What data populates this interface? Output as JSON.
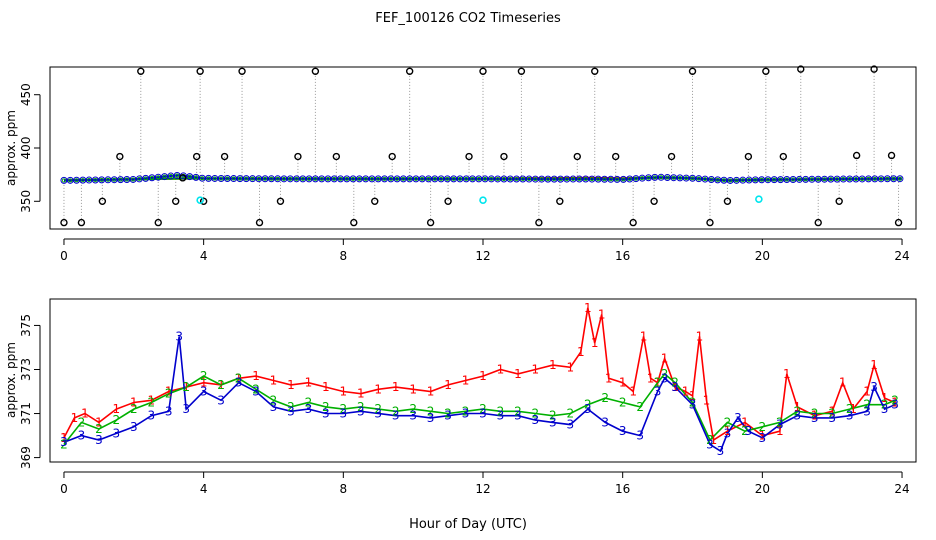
{
  "title": "FEF_100126  CO2 Timeseries",
  "xlabel": "Hour of Day (UTC)",
  "colors": {
    "series1": "#ff0000",
    "series2": "#00b000",
    "series3": "#0000cc",
    "reference": "#000000",
    "reference_alt": "#00e5ee",
    "connector": "#999999"
  },
  "chart_data": [
    {
      "type": "line",
      "name": "top-panel",
      "ylabel": "approx. ppm",
      "xlim": [
        -0.4,
        24.4
      ],
      "ylim": [
        324,
        476
      ],
      "x_ticks": [
        0,
        4,
        8,
        12,
        16,
        20,
        24
      ],
      "y_ticks": [
        350,
        400,
        450
      ],
      "series": [
        {
          "name": "1",
          "color": "#ff0000",
          "x": [
            0,
            2,
            4,
            6,
            8,
            10,
            12,
            13,
            14,
            15,
            16,
            17,
            18,
            19,
            20,
            22,
            24
          ],
          "y": [
            369.8,
            370.8,
            371.4,
            371.2,
            371.1,
            371.0,
            371.1,
            371.6,
            371.8,
            372.0,
            371.6,
            372.2,
            371.6,
            369.7,
            370.2,
            370.8,
            371.3
          ]
        },
        {
          "name": "2",
          "color": "#00b000",
          "x": [
            0,
            2,
            4,
            6,
            8,
            10,
            12,
            14,
            15,
            16,
            17,
            18,
            19,
            20,
            22,
            24
          ],
          "y": [
            369.6,
            370.7,
            371.5,
            371.1,
            371.0,
            371.0,
            371.0,
            370.9,
            371.0,
            370.6,
            372.4,
            371.5,
            369.6,
            370.2,
            370.8,
            371.2
          ]
        },
        {
          "name": "3",
          "color": "#0000cc",
          "x": [
            0,
            2,
            3.3,
            4,
            6,
            8,
            10,
            12,
            14,
            15,
            16,
            17,
            18,
            19,
            20,
            22,
            24
          ],
          "y": [
            369.6,
            370.5,
            374.4,
            371.5,
            371.1,
            371.0,
            371.0,
            371.0,
            370.8,
            370.9,
            370.5,
            372.6,
            371.6,
            369.5,
            370.2,
            370.8,
            371.2
          ]
        }
      ],
      "reference_points": {
        "note": "open-circle reference measurements cycling between ~330, ~350, ~392 and ~472 ppm",
        "x": [
          0.0,
          0.5,
          1.1,
          1.6,
          2.2,
          2.7,
          3.2,
          3.4,
          3.8,
          3.9,
          4.0,
          4.6,
          5.1,
          5.6,
          6.2,
          6.7,
          7.2,
          7.8,
          8.3,
          8.9,
          9.4,
          9.9,
          10.5,
          11.0,
          11.6,
          12.0,
          12.6,
          13.1,
          13.6,
          14.2,
          14.7,
          15.2,
          15.8,
          16.3,
          16.9,
          17.4,
          18.0,
          18.5,
          19.0,
          19.6,
          20.1,
          20.6,
          21.1,
          21.6,
          22.2,
          22.7,
          23.2,
          23.7,
          23.9
        ],
        "y": [
          330,
          330,
          350,
          392,
          472,
          330,
          350,
          372,
          392,
          472,
          350,
          392,
          472,
          330,
          350,
          392,
          472,
          392,
          330,
          350,
          392,
          472,
          330,
          350,
          392,
          472,
          392,
          472,
          330,
          350,
          392,
          472,
          392,
          330,
          350,
          392,
          472,
          330,
          350,
          392,
          472,
          392,
          474,
          330,
          350,
          393,
          474,
          393,
          330
        ]
      },
      "reference_alt_points": {
        "x": [
          3.9,
          12.0,
          19.9
        ],
        "y": [
          351,
          351,
          352
        ]
      }
    },
    {
      "type": "line",
      "name": "bottom-panel",
      "ylabel": "approx. ppm",
      "xlim": [
        -0.4,
        24.4
      ],
      "ylim": [
        368.8,
        376.2
      ],
      "x_ticks": [
        0,
        4,
        8,
        12,
        16,
        20,
        24
      ],
      "y_ticks": [
        369,
        371,
        373,
        375
      ],
      "series": [
        {
          "name": "1",
          "color": "#ff0000",
          "x": [
            0,
            0.3,
            0.6,
            1.0,
            1.5,
            2.0,
            2.5,
            3.0,
            3.5,
            4.0,
            4.5,
            5.0,
            5.5,
            6.0,
            6.5,
            7.0,
            7.5,
            8.0,
            8.5,
            9.0,
            9.5,
            10.0,
            10.5,
            11.0,
            11.5,
            12.0,
            12.5,
            13.0,
            13.5,
            14.0,
            14.5,
            14.8,
            15.0,
            15.2,
            15.4,
            15.6,
            16.0,
            16.3,
            16.6,
            16.8,
            17.0,
            17.2,
            17.5,
            17.8,
            18.0,
            18.2,
            18.4,
            18.6,
            19.0,
            19.5,
            20.0,
            20.5,
            20.7,
            21.0,
            21.5,
            22.0,
            22.3,
            22.6,
            23.0,
            23.2,
            23.5,
            23.8
          ],
          "y": [
            369.9,
            370.8,
            371.0,
            370.6,
            371.2,
            371.5,
            371.6,
            372.0,
            372.2,
            372.4,
            372.3,
            372.6,
            372.7,
            372.5,
            372.3,
            372.4,
            372.2,
            372.0,
            371.9,
            372.1,
            372.2,
            372.1,
            372.0,
            372.3,
            372.5,
            372.7,
            373.0,
            372.8,
            373.0,
            373.2,
            373.1,
            373.8,
            375.8,
            374.2,
            375.5,
            372.6,
            372.4,
            372.0,
            374.5,
            372.6,
            372.4,
            373.5,
            372.2,
            372.0,
            371.8,
            374.5,
            371.6,
            369.8,
            370.2,
            370.6,
            370.0,
            370.2,
            372.8,
            371.3,
            370.9,
            371.1,
            372.4,
            371.2,
            372.0,
            373.2,
            371.7,
            371.5
          ]
        },
        {
          "name": "2",
          "color": "#00b000",
          "x": [
            0,
            0.5,
            1.0,
            1.5,
            2.0,
            2.5,
            3.0,
            3.5,
            4.0,
            4.5,
            5.0,
            5.5,
            6.0,
            6.5,
            7.0,
            7.5,
            8.0,
            8.5,
            9.0,
            9.5,
            10.0,
            10.5,
            11.0,
            11.5,
            12.0,
            12.5,
            13.0,
            13.5,
            14.0,
            14.5,
            15.0,
            15.5,
            16.0,
            16.5,
            17.0,
            17.2,
            17.5,
            18.0,
            18.5,
            19.0,
            19.5,
            20.0,
            20.5,
            21.0,
            21.5,
            22.0,
            22.5,
            23.0,
            23.5,
            23.8
          ],
          "y": [
            369.6,
            370.6,
            370.3,
            370.7,
            371.2,
            371.5,
            371.9,
            372.2,
            372.7,
            372.3,
            372.6,
            372.1,
            371.6,
            371.3,
            371.5,
            371.3,
            371.2,
            371.3,
            371.2,
            371.1,
            371.2,
            371.1,
            371.0,
            371.1,
            371.2,
            371.1,
            371.1,
            371.0,
            370.9,
            371.0,
            371.4,
            371.7,
            371.5,
            371.3,
            372.4,
            372.8,
            372.4,
            371.5,
            369.8,
            370.6,
            370.2,
            370.4,
            370.6,
            371.1,
            371.0,
            371.0,
            371.2,
            371.4,
            371.4,
            371.6
          ]
        },
        {
          "name": "3",
          "color": "#0000cc",
          "x": [
            0,
            0.5,
            1.0,
            1.5,
            2.0,
            2.5,
            3.0,
            3.3,
            3.5,
            4.0,
            4.5,
            5.0,
            5.5,
            6.0,
            6.5,
            7.0,
            7.5,
            8.0,
            8.5,
            9.0,
            9.5,
            10.0,
            10.5,
            11.0,
            11.5,
            12.0,
            12.5,
            13.0,
            13.5,
            14.0,
            14.5,
            15.0,
            15.5,
            16.0,
            16.5,
            17.0,
            17.2,
            17.5,
            18.0,
            18.5,
            18.8,
            19.0,
            19.3,
            19.6,
            20.0,
            20.5,
            21.0,
            21.5,
            22.0,
            22.5,
            23.0,
            23.2,
            23.5,
            23.8
          ],
          "y": [
            369.7,
            370.0,
            369.8,
            370.1,
            370.4,
            370.9,
            371.1,
            374.5,
            371.2,
            372.0,
            371.6,
            372.4,
            372.0,
            371.3,
            371.1,
            371.2,
            371.0,
            371.0,
            371.1,
            371.0,
            370.9,
            370.9,
            370.8,
            370.9,
            371.0,
            371.0,
            370.9,
            370.9,
            370.7,
            370.6,
            370.5,
            371.2,
            370.6,
            370.2,
            370.0,
            372.0,
            372.6,
            372.2,
            371.4,
            369.6,
            369.3,
            370.1,
            370.8,
            370.2,
            369.9,
            370.5,
            370.9,
            370.8,
            370.8,
            370.9,
            371.1,
            372.2,
            371.2,
            371.4
          ]
        }
      ]
    }
  ]
}
